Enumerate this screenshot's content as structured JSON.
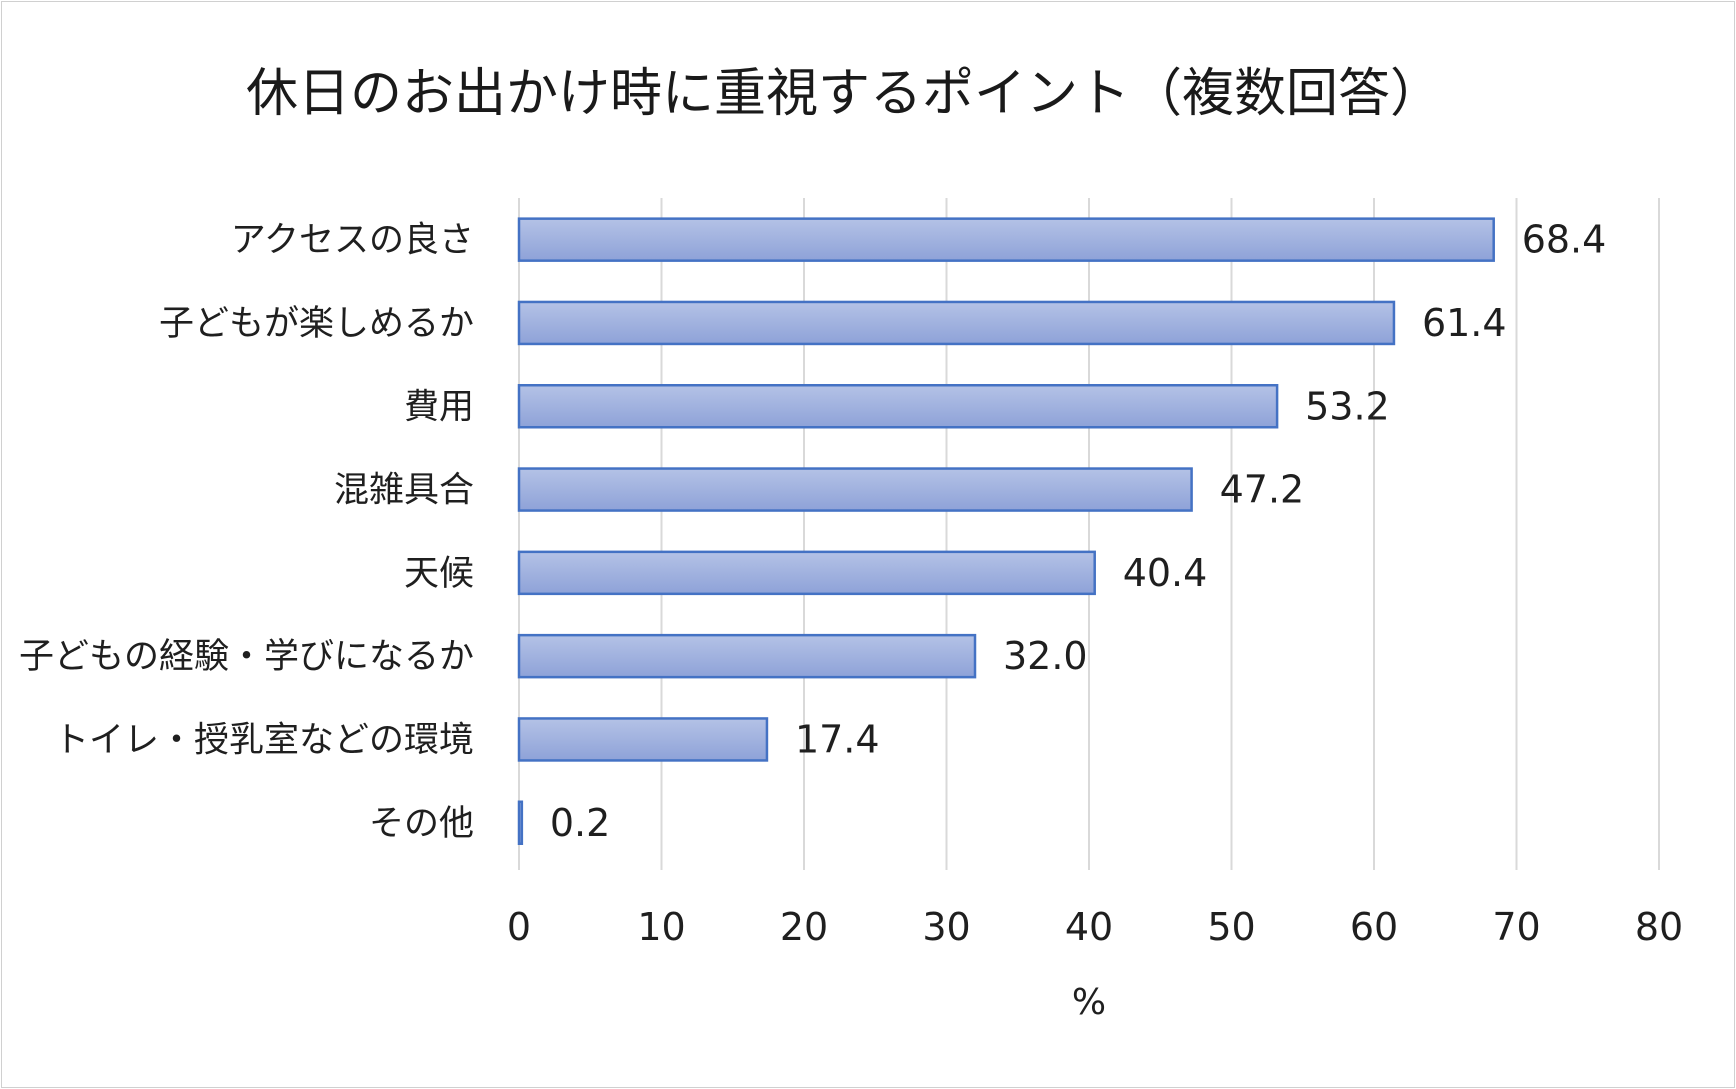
{
  "chart_data": {
    "type": "bar",
    "orientation": "horizontal",
    "title": "休日のお出かけ時に重視するポイント（複数回答）",
    "xlabel": "%",
    "ylabel": "",
    "xlim": [
      0,
      80
    ],
    "x_ticks": [
      0,
      10,
      20,
      30,
      40,
      50,
      60,
      70,
      80
    ],
    "grid": "vertical",
    "legend": "none",
    "bar_fill_top": "#b4c2e6",
    "bar_fill_bottom": "#8ea2d8",
    "bar_border": "#4472c4",
    "categories": [
      "アクセスの良さ",
      "子どもが楽しめるか",
      "費用",
      "混雑具合",
      "天候",
      "子どもの経験・学びになるか",
      "トイレ・授乳室などの環境",
      "その他"
    ],
    "values": [
      68.4,
      61.4,
      53.2,
      47.2,
      40.4,
      32.0,
      17.4,
      0.2
    ],
    "value_labels": [
      "68.4",
      "61.4",
      "53.2",
      "47.2",
      "40.4",
      "32.0",
      "17.4",
      "0.2"
    ]
  }
}
